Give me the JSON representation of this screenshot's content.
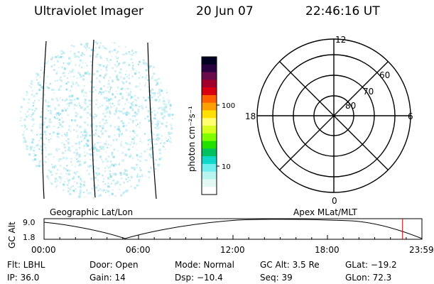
{
  "header": {
    "instrument": "Ultraviolet Imager",
    "date": "20 Jun 07",
    "time": "22:46:16 UT"
  },
  "colorbar": {
    "label": "photon cm⁻²s⁻¹",
    "ticks": [
      {
        "label": "100",
        "value": 100
      },
      {
        "label": "10",
        "value": 10
      }
    ],
    "colors": [
      "#000022",
      "#2a0040",
      "#6a0a4a",
      "#a0002a",
      "#d80010",
      "#ff6000",
      "#ffa000",
      "#ffe000",
      "#ffff70",
      "#d8ff20",
      "#80ff00",
      "#20e000",
      "#00c060",
      "#10d8c8",
      "#70eef0",
      "#b8f4f0",
      "#e4f8f4",
      "#ffffff"
    ]
  },
  "polar_plot": {
    "mlt_labels": {
      "top": "12",
      "left": "18",
      "right": "6",
      "bottom": "0"
    },
    "lat_labels": [
      "60",
      "70",
      "80"
    ]
  },
  "image_panel": {
    "overlay_color": "#bde9ef"
  },
  "timeline": {
    "left_label": "Geographic Lat/Lon",
    "right_label": "Apex MLat/MLT",
    "y_axis_label": "GC Alt",
    "y_ticks": [
      "9.0",
      "1.8"
    ],
    "x_ticks": [
      "00:00",
      "06:00",
      "12:00",
      "18:00",
      "23:59"
    ],
    "marker_color": "#d00000",
    "marker_time_hours": 22.77
  },
  "status": {
    "filter": "Flt: LBHL",
    "ip": "IP: 36.0",
    "door": "Door: Open",
    "gain": "Gain: 14",
    "mode": "Mode: Normal",
    "dsp": "Dsp:  −10.4",
    "gc_alt": "GC Alt: 3.5 Re",
    "seq": "Seq: 39",
    "glat": "GLat: −19.2",
    "glon": "GLon:  72.3"
  }
}
